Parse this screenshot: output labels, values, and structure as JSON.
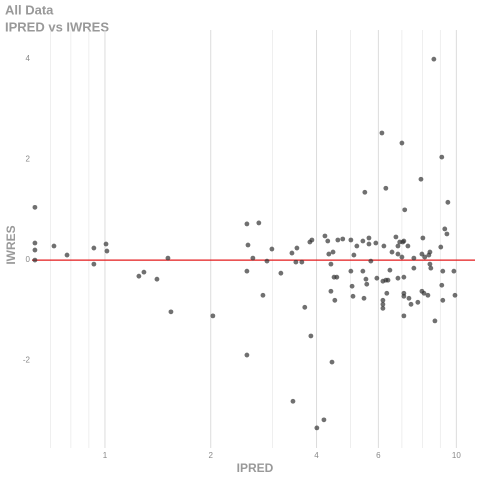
{
  "chart_data": {
    "type": "scatter",
    "title": "All Data",
    "subtitle": "IPRED vs IWRES",
    "x_label": "IPRED",
    "y_label": "IWRES",
    "log_x": true,
    "grid": "x",
    "xlim": [
      0.62,
      11.3
    ],
    "ylim": [
      -3.74,
      4.58
    ],
    "xticks": [
      1,
      2,
      4,
      6,
      10
    ],
    "x_minor_grid": [
      0.7,
      0.8,
      0.9,
      3,
      5,
      7,
      8,
      9
    ],
    "yticks": [
      -2,
      0,
      2,
      4
    ],
    "reference_line": {
      "y": 0,
      "color": "#e41a1c"
    },
    "color": "#333333",
    "x": [
      0.632,
      0.632,
      0.632,
      0.632,
      0.716,
      0.78,
      0.93,
      0.93,
      1.007,
      1.013,
      1.249,
      1.291,
      1.406,
      1.511,
      1.541,
      2.028,
      2.535,
      2.535,
      2.553,
      2.535,
      2.636,
      2.741,
      2.816,
      2.891,
      2.986,
      3.167,
      3.405,
      3.428,
      3.494,
      3.518,
      3.633,
      3.704,
      3.829,
      3.855,
      3.881,
      4.009,
      4.199,
      4.227,
      4.306,
      4.336,
      4.396,
      4.396,
      4.457,
      4.427,
      4.487,
      4.51,
      4.57,
      4.6,
      4.75,
      5.01,
      5.01,
      5.05,
      5.08,
      5.11,
      5.21,
      5.42,
      5.42,
      5.46,
      5.49,
      5.53,
      5.56,
      5.64,
      5.64,
      5.71,
      5.9,
      5.94,
      6.14,
      6.18,
      6.18,
      6.18,
      6.18,
      6.22,
      6.3,
      6.3,
      6.34,
      6.39,
      6.47,
      6.56,
      6.73,
      6.82,
      6.82,
      6.82,
      6.9,
      7.0,
      7.0,
      7.04,
      7.09,
      7.09,
      7.09,
      7.09,
      7.09,
      7.13,
      7.28,
      7.33,
      7.43,
      7.57,
      7.57,
      7.77,
      7.93,
      7.98,
      7.98,
      8.03,
      8.09,
      8.13,
      8.3,
      8.35,
      8.41,
      8.41,
      8.46,
      8.63,
      8.69,
      9.03,
      9.09,
      9.09,
      9.15,
      9.15,
      9.27,
      9.4,
      9.46,
      9.84,
      9.91
    ],
    "values": [
      1.05,
      0.34,
      0.2,
      0,
      0.28,
      0.1,
      0.24,
      -0.08,
      0.32,
      0.18,
      -0.32,
      -0.24,
      -0.38,
      0.04,
      -1.03,
      -1.11,
      0.72,
      -0.22,
      0.3,
      -1.89,
      0.04,
      0.74,
      -0.7,
      -0.02,
      0.22,
      -0.26,
      0.14,
      -2.81,
      -0.04,
      0.24,
      -0.04,
      -0.94,
      0.36,
      -1.51,
      0.4,
      -3.34,
      -3.18,
      0.48,
      0.38,
      0.12,
      -0.08,
      -0.62,
      0.16,
      -2.03,
      -0.34,
      -0.8,
      -0.34,
      0.4,
      0.42,
      0.4,
      -0.22,
      -0.52,
      -0.72,
      0.1,
      0.28,
      0.38,
      -0.22,
      -0.76,
      1.35,
      -0.38,
      -0.48,
      0.44,
      0.32,
      -0.02,
      0.34,
      -0.36,
      2.53,
      -0.8,
      -0.88,
      -0.96,
      -0.42,
      0.28,
      1.43,
      -0.4,
      -0.66,
      -0.4,
      -0.2,
      0.16,
      0.46,
      0.12,
      -0.36,
      0.28,
      0.36,
      2.33,
      0.06,
      0.36,
      -0.34,
      -0.66,
      -0.72,
      -1.11,
      0.38,
      1.0,
      0.28,
      -0.76,
      -0.88,
      -0.16,
      0.04,
      -0.84,
      1.61,
      0.12,
      -0.62,
      0.44,
      -0.66,
      0.06,
      -0.7,
      0.1,
      0.16,
      -0.08,
      -0.16,
      4.0,
      -1.21,
      0.26,
      2.05,
      -0.5,
      -0.22,
      -0.8,
      0.62,
      0.52,
      1.15,
      -0.22,
      -0.7
    ]
  }
}
